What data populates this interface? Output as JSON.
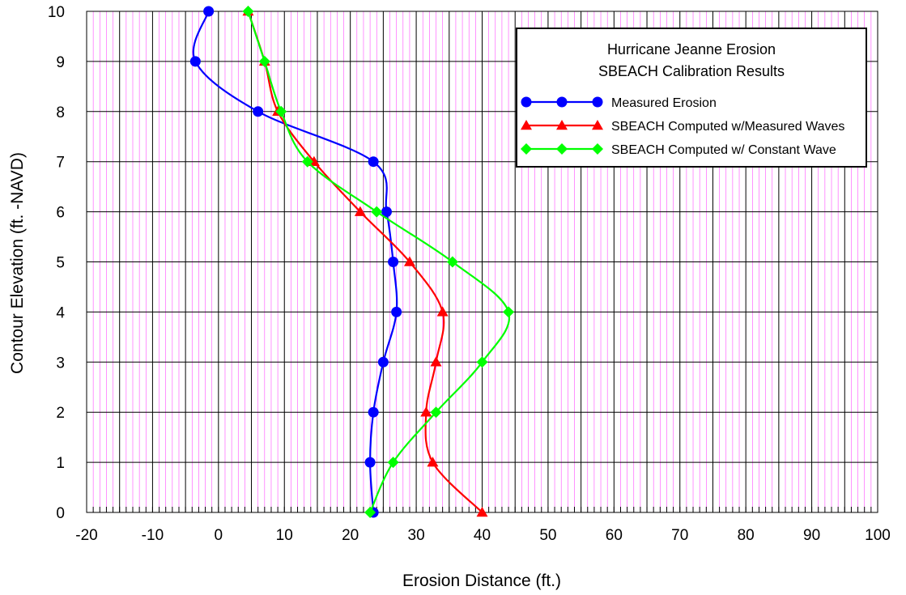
{
  "chart_data": {
    "type": "line",
    "xlabel": "Erosion Distance (ft.)",
    "ylabel": "Contour Elevation (ft. -NAVD)",
    "xlim": [
      -20,
      100
    ],
    "ylim": [
      0,
      10
    ],
    "x_ticks": [
      "-20",
      "-10",
      "0",
      "10",
      "20",
      "30",
      "40",
      "50",
      "60",
      "70",
      "80",
      "90",
      "100"
    ],
    "y_ticks": [
      "0",
      "1",
      "2",
      "3",
      "4",
      "5",
      "6",
      "7",
      "8",
      "9",
      "10"
    ],
    "major_grid": true,
    "minor_grid": true,
    "legend": {
      "title_line1": "Hurricane Jeanne Erosion",
      "title_line2": "SBEACH Calibration Results",
      "placement": "top-right"
    },
    "series": [
      {
        "name": "Measured Erosion",
        "color": "#0000ff",
        "marker": "circle",
        "points": [
          [
            23.5,
            0
          ],
          [
            23,
            1
          ],
          [
            23.5,
            2
          ],
          [
            25,
            3
          ],
          [
            27,
            4
          ],
          [
            26.5,
            5
          ],
          [
            25.5,
            6
          ],
          [
            23.5,
            7
          ],
          [
            6,
            8
          ],
          [
            -3.5,
            9
          ],
          [
            -1.5,
            10
          ]
        ]
      },
      {
        "name": "SBEACH Computed w/Measured Waves",
        "color": "#ff0000",
        "marker": "triangle",
        "points": [
          [
            40,
            0
          ],
          [
            32.5,
            1
          ],
          [
            31.5,
            2
          ],
          [
            33,
            3
          ],
          [
            34,
            4
          ],
          [
            29,
            5
          ],
          [
            21.5,
            6
          ],
          [
            14.5,
            7
          ],
          [
            9,
            8
          ],
          [
            7,
            9
          ],
          [
            4.5,
            10
          ]
        ]
      },
      {
        "name": "SBEACH Computed w/ Constant Wave",
        "color": "#00ff00",
        "marker": "diamond",
        "points": [
          [
            23,
            0
          ],
          [
            26.5,
            1
          ],
          [
            33,
            2
          ],
          [
            40,
            3
          ],
          [
            44,
            4
          ],
          [
            35.5,
            5
          ],
          [
            24,
            6
          ],
          [
            13.5,
            7
          ],
          [
            9.5,
            8
          ],
          [
            7,
            9
          ],
          [
            4.5,
            10
          ]
        ]
      }
    ]
  }
}
